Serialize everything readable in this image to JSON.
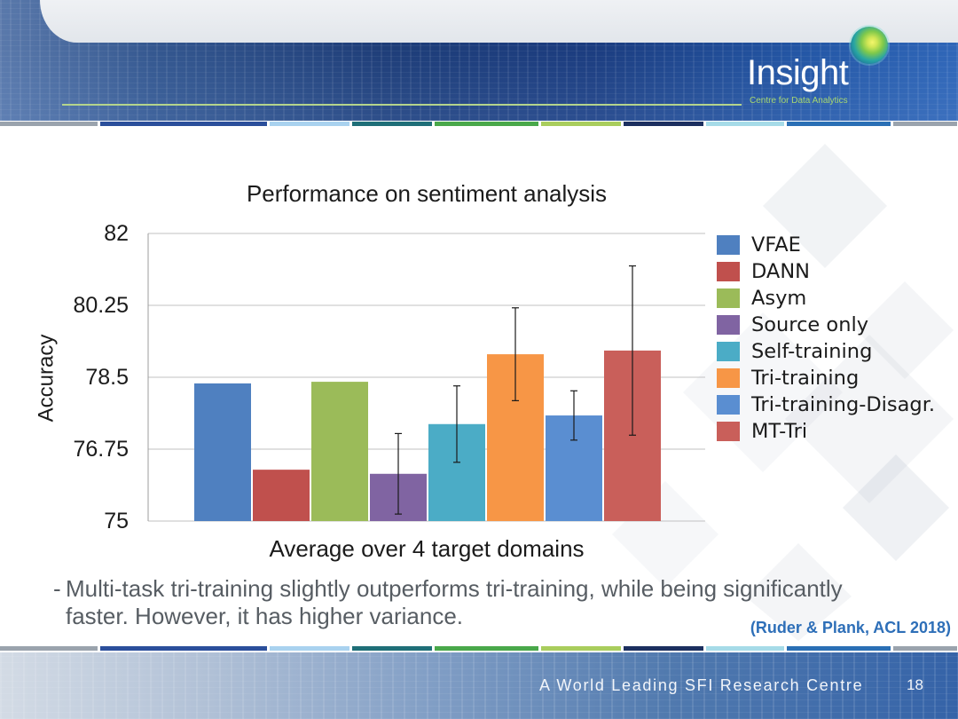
{
  "slide": {
    "header": {
      "logo_name": "Insight",
      "logo_subtitle": "Centre for Data Analytics"
    },
    "bullet": {
      "marker": "-",
      "lines": [
        "Multi-task tri-training slightly outperforms tri-training, while being significantly",
        "faster. However, it has higher variance."
      ]
    },
    "citation": "(Ruder & Plank, ACL 2018)",
    "footer": {
      "tagline": "A World Leading SFI Research Centre",
      "slide_number": "18"
    },
    "colors": {
      "brand_blue": "#1e3d78",
      "citation_blue": "#2e6fb8",
      "accent_green": "#a8d870"
    }
  },
  "chart_data": {
    "type": "bar",
    "title": "Performance on sentiment analysis",
    "xlabel": "Average over 4 target domains",
    "ylabel": "Accuracy",
    "ylim": [
      75,
      82
    ],
    "yticks": [
      82,
      80.25,
      78.5,
      76.75,
      75
    ],
    "grid": true,
    "legend": "right",
    "series": [
      {
        "name": "VFAE",
        "value": 78.35,
        "error": null,
        "color": "#4f80c0"
      },
      {
        "name": "DANN",
        "value": 76.25,
        "error": null,
        "color": "#c0504d"
      },
      {
        "name": "Asym",
        "value": 78.39,
        "error": null,
        "color": "#9bbb59"
      },
      {
        "name": "Source only",
        "value": 76.15,
        "error": 0.98,
        "color": "#8064a2"
      },
      {
        "name": "Self-training",
        "value": 77.36,
        "error": 0.93,
        "color": "#4bacc6"
      },
      {
        "name": "Tri-training",
        "value": 79.06,
        "error": 1.13,
        "color": "#f79646"
      },
      {
        "name": "Tri-training-Disagr.",
        "value": 77.57,
        "error": 0.6,
        "color": "#5a8ed1"
      },
      {
        "name": "MT-Tri",
        "value": 79.15,
        "error": 2.06,
        "color": "#c95f5a"
      }
    ]
  }
}
